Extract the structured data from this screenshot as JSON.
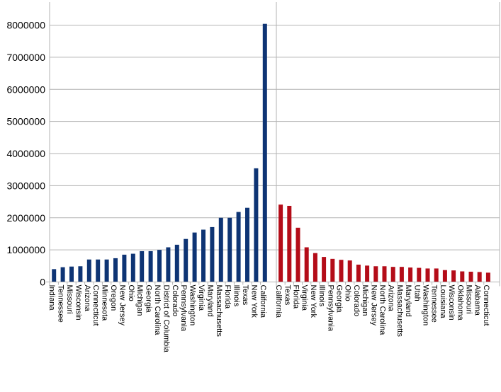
{
  "chart_data": {
    "type": "bar",
    "title": "",
    "xlabel": "",
    "ylabel": "",
    "ylim": [
      0,
      8500000
    ],
    "yticks": [
      0,
      1000000,
      2000000,
      3000000,
      4000000,
      5000000,
      6000000,
      7000000,
      8000000
    ],
    "yticklabels": [
      "0",
      "1000000",
      "2000000",
      "3000000",
      "4000000",
      "5000000",
      "6000000",
      "7000000",
      "8000000"
    ],
    "grid": true,
    "legend": "none",
    "groups": [
      {
        "color": "#0e3474",
        "categories": [
          "Indiana",
          "Tennessee",
          "Missouri",
          "Wisconsin",
          "Arizona",
          "Connecticut",
          "Minnesota",
          "Oregon",
          "New Jersey",
          "Ohio",
          "Michigan",
          "Georgia",
          "North Carolina",
          "District of Columbia",
          "Colorado",
          "Pennsylvania",
          "Washington",
          "Virginia",
          "Maryland",
          "Massachusetts",
          "Florida",
          "Illinois",
          "Texas",
          "New York",
          "California"
        ],
        "values": [
          400000,
          460000,
          480000,
          490000,
          700000,
          700000,
          700000,
          740000,
          850000,
          880000,
          960000,
          960000,
          1000000,
          1080000,
          1160000,
          1340000,
          1540000,
          1630000,
          1710000,
          2000000,
          2000000,
          2180000,
          2310000,
          3540000,
          8040000
        ]
      },
      {
        "color": "#b40c18",
        "categories": [
          "California",
          "Texas",
          "Florida",
          "Virginia",
          "New York",
          "Illinois",
          "Pennsylvania",
          "Georgia",
          "Ohio",
          "Colorado",
          "Michigan",
          "New Jersey",
          "North Carolina",
          "Arizona",
          "Massachusetts",
          "Maryland",
          "Utah",
          "Washington",
          "Tennessee",
          "Louisiana",
          "Wisconsin",
          "Oklahoma",
          "Missouri",
          "Alabama",
          "Connecticut"
        ],
        "values": [
          2410000,
          2370000,
          1690000,
          1080000,
          900000,
          780000,
          720000,
          690000,
          670000,
          540000,
          510000,
          490000,
          490000,
          470000,
          470000,
          450000,
          440000,
          420000,
          420000,
          370000,
          360000,
          330000,
          320000,
          310000,
          290000
        ]
      }
    ]
  }
}
